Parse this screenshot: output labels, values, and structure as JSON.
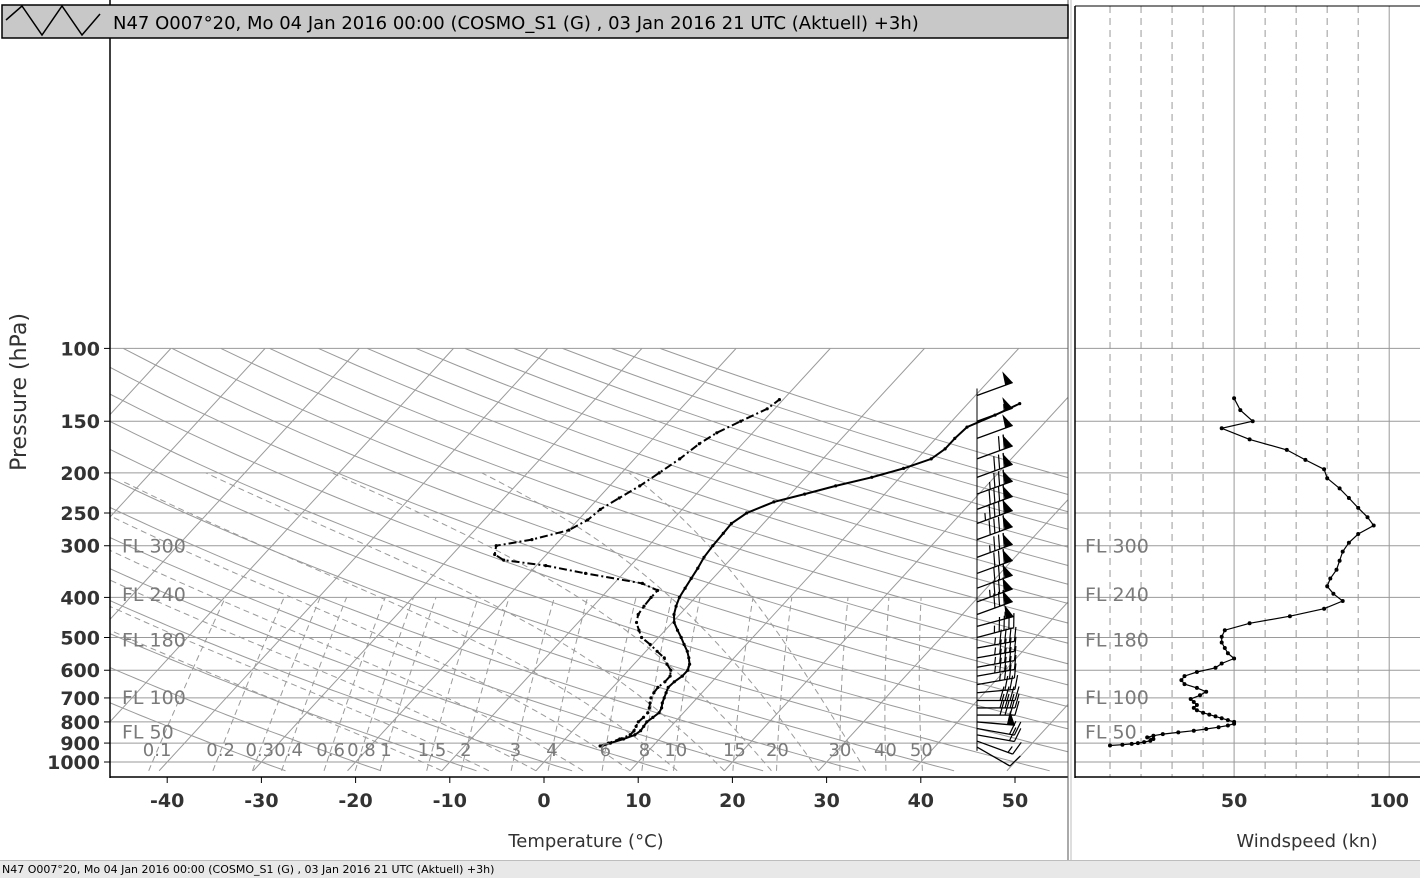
{
  "header": {
    "title": "N47 O007°20, Mo 04 Jan 2016 00:00 (COSMO_S1 (G) , 03 Jan 2016 21 UTC (Aktuell) +3h)",
    "icon": "zigzag-menu-icon"
  },
  "status_bar": {
    "text": "N47 O007°20, Mo 04 Jan 2016 00:00 (COSMO_S1 (G) , 03 Jan 2016 21 UTC (Aktuell) +3h)"
  },
  "colors": {
    "background": "#ffffff",
    "grid": "#9a9a9a",
    "profile": "#000000",
    "header_bg": "#c8c8c8",
    "fl_label": "#7a7a7a"
  },
  "chart_data": [
    {
      "type": "line",
      "subtype": "skew-t log-p diagram",
      "title": "",
      "xlabel": "Temperature (°C)",
      "ylabel": "Pressure (hPa)",
      "xlim": [
        -47,
        55
      ],
      "ylim": [
        1050,
        100
      ],
      "y_scale": "log",
      "grid": true,
      "x_ticks": [
        "-40",
        "-30",
        "-20",
        "-10",
        "0",
        "10",
        "20",
        "30",
        "40",
        "50"
      ],
      "y_ticks": [
        "100",
        "150",
        "200",
        "250",
        "300",
        "400",
        "500",
        "600",
        "700",
        "800",
        "900",
        "1000"
      ],
      "flight_levels": [
        {
          "label": "FL 300",
          "p": 300
        },
        {
          "label": "FL 240",
          "p": 393
        },
        {
          "label": "FL 180",
          "p": 505
        },
        {
          "label": "FL 100",
          "p": 697
        },
        {
          "label": "FL 50",
          "p": 843
        }
      ],
      "mixing_ratio_labels": [
        "0.1",
        "0.2",
        "0.3",
        "0.4",
        "0.6",
        "0.8",
        "1",
        "1.5",
        "2",
        "3",
        "4",
        "6",
        "8",
        "10",
        "15",
        "20",
        "30",
        "40",
        "50"
      ],
      "series": [
        {
          "name": "",
          "style": "solid",
          "points": [
            {
              "p": 915,
              "t": 4.6
            },
            {
              "p": 900,
              "t": 5.2
            },
            {
              "p": 880,
              "t": 6.2
            },
            {
              "p": 860,
              "t": 7.0
            },
            {
              "p": 840,
              "t": 7.2
            },
            {
              "p": 820,
              "t": 7.1
            },
            {
              "p": 800,
              "t": 7.0
            },
            {
              "p": 780,
              "t": 7.2
            },
            {
              "p": 760,
              "t": 7.4
            },
            {
              "p": 740,
              "t": 7.2
            },
            {
              "p": 720,
              "t": 6.8
            },
            {
              "p": 700,
              "t": 6.5
            },
            {
              "p": 680,
              "t": 6.2
            },
            {
              "p": 660,
              "t": 5.9
            },
            {
              "p": 640,
              "t": 6.0
            },
            {
              "p": 620,
              "t": 6.3
            },
            {
              "p": 600,
              "t": 6.3
            },
            {
              "p": 580,
              "t": 5.9
            },
            {
              "p": 560,
              "t": 5.2
            },
            {
              "p": 540,
              "t": 4.4
            },
            {
              "p": 520,
              "t": 3.4
            },
            {
              "p": 500,
              "t": 2.4
            },
            {
              "p": 480,
              "t": 1.3
            },
            {
              "p": 460,
              "t": 0.2
            },
            {
              "p": 440,
              "t": -0.6
            },
            {
              "p": 420,
              "t": -1.2
            },
            {
              "p": 400,
              "t": -1.7
            },
            {
              "p": 380,
              "t": -2.0
            },
            {
              "p": 360,
              "t": -2.3
            },
            {
              "p": 340,
              "t": -2.6
            },
            {
              "p": 320,
              "t": -3.0
            },
            {
              "p": 300,
              "t": -3.2
            },
            {
              "p": 280,
              "t": -3.3
            },
            {
              "p": 265,
              "t": -3.4
            },
            {
              "p": 250,
              "t": -2.8
            },
            {
              "p": 235,
              "t": -1.0
            },
            {
              "p": 225,
              "t": 1.5
            },
            {
              "p": 215,
              "t": 4.0
            },
            {
              "p": 205,
              "t": 7.0
            },
            {
              "p": 195,
              "t": 9.5
            },
            {
              "p": 185,
              "t": 11.5
            },
            {
              "p": 175,
              "t": 12.0
            },
            {
              "p": 165,
              "t": 12.0
            },
            {
              "p": 155,
              "t": 12.2
            },
            {
              "p": 145,
              "t": 14.0
            },
            {
              "p": 136,
              "t": 15.5
            }
          ]
        },
        {
          "name": "",
          "style": "dash-dot",
          "points": [
            {
              "p": 915,
              "t": 4.4
            },
            {
              "p": 900,
              "t": 5.0
            },
            {
              "p": 880,
              "t": 5.8
            },
            {
              "p": 860,
              "t": 6.5
            },
            {
              "p": 840,
              "t": 6.5
            },
            {
              "p": 820,
              "t": 6.3
            },
            {
              "p": 800,
              "t": 6.1
            },
            {
              "p": 780,
              "t": 6.2
            },
            {
              "p": 760,
              "t": 6.2
            },
            {
              "p": 740,
              "t": 5.9
            },
            {
              "p": 720,
              "t": 5.5
            },
            {
              "p": 700,
              "t": 5.1
            },
            {
              "p": 680,
              "t": 4.9
            },
            {
              "p": 660,
              "t": 4.8
            },
            {
              "p": 640,
              "t": 5.0
            },
            {
              "p": 620,
              "t": 5.0
            },
            {
              "p": 600,
              "t": 4.5
            },
            {
              "p": 580,
              "t": 3.5
            },
            {
              "p": 560,
              "t": 2.6
            },
            {
              "p": 540,
              "t": 1.2
            },
            {
              "p": 520,
              "t": -0.2
            },
            {
              "p": 500,
              "t": -1.8
            },
            {
              "p": 480,
              "t": -2.8
            },
            {
              "p": 460,
              "t": -3.8
            },
            {
              "p": 440,
              "t": -4.4
            },
            {
              "p": 420,
              "t": -4.6
            },
            {
              "p": 400,
              "t": -4.7
            },
            {
              "p": 385,
              "t": -4.7
            },
            {
              "p": 370,
              "t": -7.0
            },
            {
              "p": 350,
              "t": -14.0
            },
            {
              "p": 335,
              "t": -19.0
            },
            {
              "p": 325,
              "t": -24.0
            },
            {
              "p": 315,
              "t": -25.5
            },
            {
              "p": 300,
              "t": -26.2
            },
            {
              "p": 290,
              "t": -23.0
            },
            {
              "p": 275,
              "t": -20.0
            },
            {
              "p": 260,
              "t": -19.0
            },
            {
              "p": 245,
              "t": -18.7
            },
            {
              "p": 230,
              "t": -17.8
            },
            {
              "p": 215,
              "t": -16.8
            },
            {
              "p": 200,
              "t": -16.0
            },
            {
              "p": 185,
              "t": -15.2
            },
            {
              "p": 170,
              "t": -14.6
            },
            {
              "p": 160,
              "t": -13.8
            },
            {
              "p": 150,
              "t": -12.4
            },
            {
              "p": 140,
              "t": -10.8
            },
            {
              "p": 133,
              "t": -10.4
            }
          ]
        }
      ],
      "wind_barbs": [
        {
          "p": 920,
          "dir": 240,
          "kn": 10
        },
        {
          "p": 890,
          "dir": 250,
          "kn": 15
        },
        {
          "p": 860,
          "dir": 260,
          "kn": 20
        },
        {
          "p": 830,
          "dir": 260,
          "kn": 20
        },
        {
          "p": 800,
          "dir": 265,
          "kn": 50
        },
        {
          "p": 770,
          "dir": 270,
          "kn": 40
        },
        {
          "p": 740,
          "dir": 270,
          "kn": 40
        },
        {
          "p": 710,
          "dir": 270,
          "kn": 40
        },
        {
          "p": 680,
          "dir": 275,
          "kn": 30
        },
        {
          "p": 650,
          "dir": 280,
          "kn": 35
        },
        {
          "p": 620,
          "dir": 280,
          "kn": 45
        },
        {
          "p": 590,
          "dir": 280,
          "kn": 45
        },
        {
          "p": 560,
          "dir": 280,
          "kn": 45
        },
        {
          "p": 530,
          "dir": 280,
          "kn": 45
        },
        {
          "p": 500,
          "dir": 285,
          "kn": 45
        },
        {
          "p": 470,
          "dir": 285,
          "kn": 55
        },
        {
          "p": 440,
          "dir": 290,
          "kn": 80
        },
        {
          "p": 410,
          "dir": 290,
          "kn": 85
        },
        {
          "p": 380,
          "dir": 290,
          "kn": 82
        },
        {
          "p": 350,
          "dir": 290,
          "kn": 80
        },
        {
          "p": 320,
          "dir": 290,
          "kn": 85
        },
        {
          "p": 290,
          "dir": 290,
          "kn": 90
        },
        {
          "p": 265,
          "dir": 290,
          "kn": 95
        },
        {
          "p": 245,
          "dir": 290,
          "kn": 90
        },
        {
          "p": 225,
          "dir": 290,
          "kn": 85
        },
        {
          "p": 205,
          "dir": 290,
          "kn": 80
        },
        {
          "p": 185,
          "dir": 290,
          "kn": 70
        },
        {
          "p": 165,
          "dir": 290,
          "kn": 50
        },
        {
          "p": 150,
          "dir": 290,
          "kn": 55
        },
        {
          "p": 130,
          "dir": 290,
          "kn": 50
        }
      ]
    },
    {
      "type": "line",
      "title": "",
      "xlabel": "Windspeed (kn)",
      "ylabel": "",
      "xlim": [
        0,
        105
      ],
      "ylim": [
        1050,
        100
      ],
      "y_scale": "log",
      "grid": true,
      "x_ticks": [
        "50",
        "100"
      ],
      "flight_levels": [
        {
          "label": "FL 300",
          "p": 300
        },
        {
          "label": "FL 240",
          "p": 393
        },
        {
          "label": "FL 180",
          "p": 505
        },
        {
          "label": "FL 100",
          "p": 697
        },
        {
          "label": "FL 50",
          "p": 843
        }
      ],
      "series": [
        {
          "name": "",
          "points": [
            {
              "p": 912,
              "v": 10
            },
            {
              "p": 908,
              "v": 14
            },
            {
              "p": 904,
              "v": 17
            },
            {
              "p": 900,
              "v": 19
            },
            {
              "p": 895,
              "v": 21
            },
            {
              "p": 888,
              "v": 23
            },
            {
              "p": 880,
              "v": 24
            },
            {
              "p": 872,
              "v": 22
            },
            {
              "p": 864,
              "v": 24
            },
            {
              "p": 856,
              "v": 27
            },
            {
              "p": 848,
              "v": 32
            },
            {
              "p": 840,
              "v": 37
            },
            {
              "p": 832,
              "v": 41
            },
            {
              "p": 824,
              "v": 45
            },
            {
              "p": 816,
              "v": 48
            },
            {
              "p": 808,
              "v": 50
            },
            {
              "p": 800,
              "v": 50
            },
            {
              "p": 792,
              "v": 48
            },
            {
              "p": 784,
              "v": 46
            },
            {
              "p": 776,
              "v": 44
            },
            {
              "p": 768,
              "v": 42
            },
            {
              "p": 760,
              "v": 40
            },
            {
              "p": 750,
              "v": 38
            },
            {
              "p": 740,
              "v": 37
            },
            {
              "p": 728,
              "v": 38
            },
            {
              "p": 716,
              "v": 37
            },
            {
              "p": 704,
              "v": 36
            },
            {
              "p": 690,
              "v": 39
            },
            {
              "p": 676,
              "v": 41
            },
            {
              "p": 662,
              "v": 38
            },
            {
              "p": 648,
              "v": 34
            },
            {
              "p": 634,
              "v": 33
            },
            {
              "p": 620,
              "v": 34
            },
            {
              "p": 606,
              "v": 38
            },
            {
              "p": 592,
              "v": 44
            },
            {
              "p": 578,
              "v": 46
            },
            {
              "p": 562,
              "v": 50
            },
            {
              "p": 546,
              "v": 48
            },
            {
              "p": 530,
              "v": 47
            },
            {
              "p": 514,
              "v": 46
            },
            {
              "p": 498,
              "v": 46
            },
            {
              "p": 480,
              "v": 47
            },
            {
              "p": 462,
              "v": 55
            },
            {
              "p": 444,
              "v": 68
            },
            {
              "p": 426,
              "v": 79
            },
            {
              "p": 408,
              "v": 85
            },
            {
              "p": 392,
              "v": 82
            },
            {
              "p": 376,
              "v": 80
            },
            {
              "p": 360,
              "v": 81
            },
            {
              "p": 343,
              "v": 83
            },
            {
              "p": 326,
              "v": 84
            },
            {
              "p": 310,
              "v": 85
            },
            {
              "p": 295,
              "v": 87
            },
            {
              "p": 281,
              "v": 90
            },
            {
              "p": 268,
              "v": 95
            },
            {
              "p": 256,
              "v": 93
            },
            {
              "p": 243,
              "v": 90
            },
            {
              "p": 230,
              "v": 87
            },
            {
              "p": 218,
              "v": 84
            },
            {
              "p": 206,
              "v": 80
            },
            {
              "p": 196,
              "v": 79
            },
            {
              "p": 186,
              "v": 73
            },
            {
              "p": 176,
              "v": 67
            },
            {
              "p": 166,
              "v": 55
            },
            {
              "p": 156,
              "v": 46
            },
            {
              "p": 150,
              "v": 56
            },
            {
              "p": 141,
              "v": 52
            },
            {
              "p": 132,
              "v": 50
            }
          ]
        }
      ]
    }
  ]
}
